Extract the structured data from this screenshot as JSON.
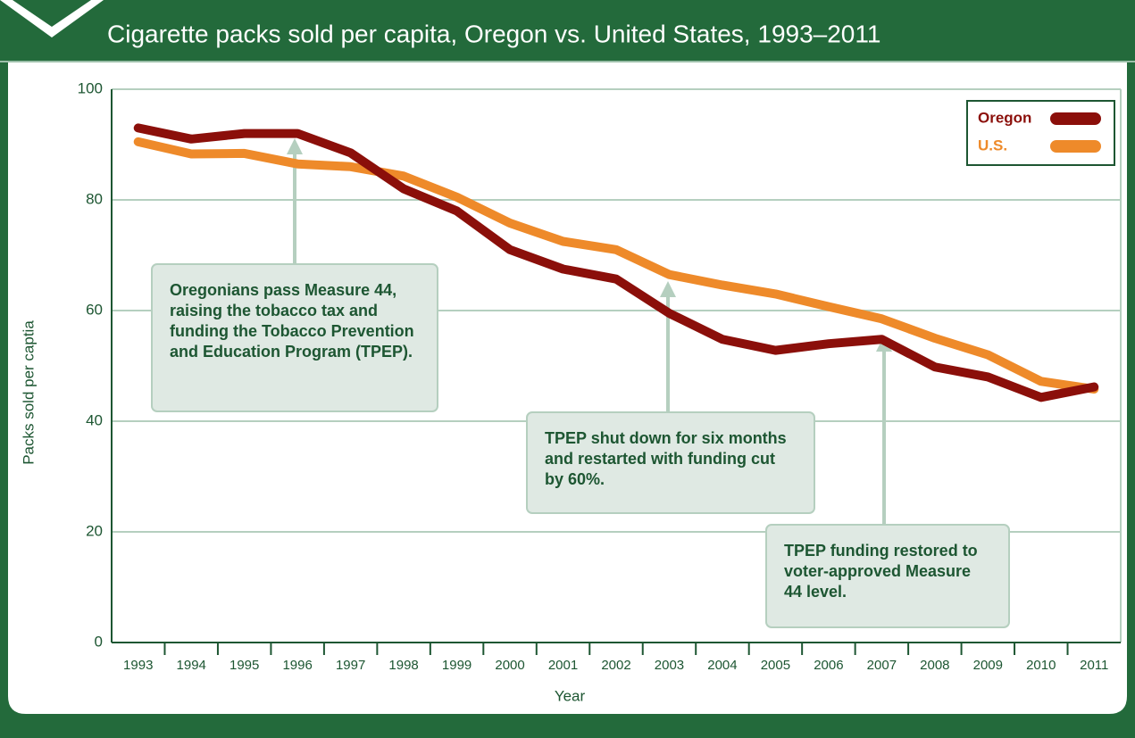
{
  "chart_data": {
    "type": "line",
    "title": "Cigarette packs sold per capita, Oregon vs. United States, 1993–2011",
    "x_label": "Year",
    "y_label": "Packs sold per captia",
    "categories": [
      "1993",
      "1994",
      "1995",
      "1996",
      "1997",
      "1998",
      "1999",
      "2000",
      "2001",
      "2002",
      "2003",
      "2004",
      "2005",
      "2006",
      "2007",
      "2008",
      "2009",
      "2010",
      "2011"
    ],
    "series": [
      {
        "name": "Oregon",
        "color": "#8b0f0a",
        "values": [
          93,
          91,
          92,
          92,
          88.5,
          82,
          78,
          71,
          67.5,
          65.7,
          59.5,
          54.8,
          52.8,
          54,
          54.8,
          49.8,
          48,
          44.3,
          46.2
        ]
      },
      {
        "name": "U.S.",
        "color": "#ee8a2a",
        "values": [
          90.5,
          88.3,
          88.4,
          86.5,
          86,
          84.3,
          80.5,
          75.8,
          72.5,
          71,
          66.5,
          64.6,
          63,
          60.7,
          58.5,
          55,
          52,
          47.2,
          45.8
        ]
      }
    ],
    "ylim": [
      0,
      100
    ],
    "yticks": [
      0,
      20,
      40,
      60,
      80,
      100
    ],
    "grid": true,
    "legend": "upper right",
    "annotations": [
      "Oregonians pass Measure 44, raising the tobacco tax and funding the Tobacco Prevention and Education Program (TPEP).",
      "TPEP shut down for six months and restarted with funding cut by 60%.",
      "TPEP funding restored to voter-approved Measure 44 level."
    ]
  }
}
